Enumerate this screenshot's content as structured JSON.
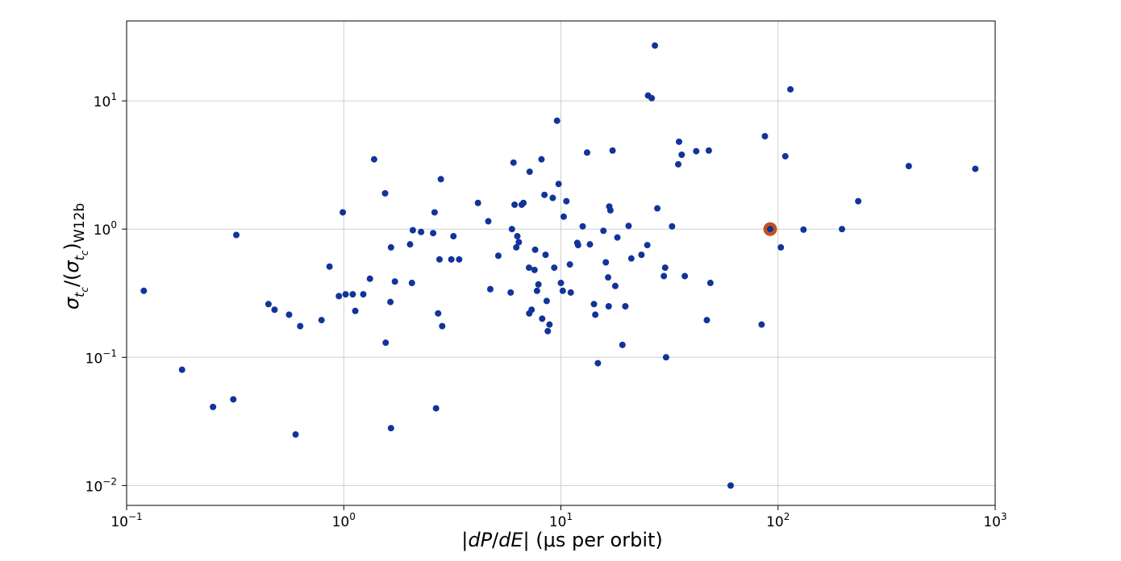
{
  "chart_data": {
    "type": "scatter",
    "xscale": "log",
    "yscale": "log",
    "xlim": [
      0.1,
      1000
    ],
    "ylim": [
      0.007,
      42
    ],
    "grid": true,
    "xlabel_parts": {
      "abs_open": "|",
      "dP": "dP",
      "slash": "/",
      "dE": "dE",
      "abs_close": "|",
      "units": " (μs per orbit)"
    },
    "ylabel_parts": {
      "sigma1": "σ",
      "sub1": "t",
      "subsub1": "c",
      "mid": "/(",
      "sigma2": "σ",
      "sub2": "t",
      "subsub2": "c",
      "close": ")",
      "subscript": "W12b"
    },
    "xticks": [
      {
        "value": 0.1,
        "base": "10",
        "exp": "−1"
      },
      {
        "value": 1,
        "base": "10",
        "exp": "0"
      },
      {
        "value": 10,
        "base": "10",
        "exp": "1"
      },
      {
        "value": 100,
        "base": "10",
        "exp": "2"
      },
      {
        "value": 1000,
        "base": "10",
        "exp": "3"
      }
    ],
    "yticks": [
      {
        "value": 0.01,
        "base": "10",
        "exp": "−2"
      },
      {
        "value": 0.1,
        "base": "10",
        "exp": "−1"
      },
      {
        "value": 1,
        "base": "10",
        "exp": "0"
      },
      {
        "value": 10,
        "base": "10",
        "exp": "1"
      }
    ],
    "point_color": "#12339a",
    "highlight_color": "#c2521e",
    "highlight": {
      "x": 92,
      "y": 1.0
    },
    "points": [
      {
        "x": 0.12,
        "y": 0.33
      },
      {
        "x": 0.18,
        "y": 0.08
      },
      {
        "x": 0.25,
        "y": 0.041
      },
      {
        "x": 0.31,
        "y": 0.047
      },
      {
        "x": 0.32,
        "y": 0.9
      },
      {
        "x": 0.45,
        "y": 0.26
      },
      {
        "x": 0.48,
        "y": 0.235
      },
      {
        "x": 0.56,
        "y": 0.215
      },
      {
        "x": 0.6,
        "y": 0.025
      },
      {
        "x": 0.63,
        "y": 0.175
      },
      {
        "x": 0.79,
        "y": 0.195
      },
      {
        "x": 0.86,
        "y": 0.51
      },
      {
        "x": 0.95,
        "y": 0.3
      },
      {
        "x": 0.99,
        "y": 1.35
      },
      {
        "x": 1.02,
        "y": 0.31
      },
      {
        "x": 1.1,
        "y": 0.31
      },
      {
        "x": 1.13,
        "y": 0.23
      },
      {
        "x": 1.23,
        "y": 0.31
      },
      {
        "x": 1.32,
        "y": 0.41
      },
      {
        "x": 1.38,
        "y": 3.5
      },
      {
        "x": 1.55,
        "y": 1.9
      },
      {
        "x": 1.56,
        "y": 0.13
      },
      {
        "x": 1.65,
        "y": 0.72
      },
      {
        "x": 1.65,
        "y": 0.028
      },
      {
        "x": 1.64,
        "y": 0.27
      },
      {
        "x": 1.72,
        "y": 0.39
      },
      {
        "x": 2.02,
        "y": 0.76
      },
      {
        "x": 2.06,
        "y": 0.38
      },
      {
        "x": 2.08,
        "y": 0.98
      },
      {
        "x": 2.27,
        "y": 0.95
      },
      {
        "x": 2.58,
        "y": 0.93
      },
      {
        "x": 2.62,
        "y": 1.35
      },
      {
        "x": 2.66,
        "y": 0.04
      },
      {
        "x": 2.72,
        "y": 0.22
      },
      {
        "x": 2.76,
        "y": 0.58
      },
      {
        "x": 2.8,
        "y": 2.45
      },
      {
        "x": 2.84,
        "y": 0.175
      },
      {
        "x": 3.2,
        "y": 0.88
      },
      {
        "x": 3.13,
        "y": 0.58
      },
      {
        "x": 3.4,
        "y": 0.58
      },
      {
        "x": 4.15,
        "y": 1.6
      },
      {
        "x": 4.63,
        "y": 1.15
      },
      {
        "x": 4.73,
        "y": 0.34
      },
      {
        "x": 5.15,
        "y": 0.62
      },
      {
        "x": 5.87,
        "y": 0.32
      },
      {
        "x": 5.95,
        "y": 1.0
      },
      {
        "x": 6.05,
        "y": 3.3
      },
      {
        "x": 6.12,
        "y": 1.55
      },
      {
        "x": 6.23,
        "y": 0.72
      },
      {
        "x": 6.3,
        "y": 0.88
      },
      {
        "x": 6.4,
        "y": 0.79
      },
      {
        "x": 6.6,
        "y": 1.55
      },
      {
        "x": 6.72,
        "y": 1.6
      },
      {
        "x": 7.13,
        "y": 0.5
      },
      {
        "x": 7.18,
        "y": 2.8
      },
      {
        "x": 7.15,
        "y": 0.22
      },
      {
        "x": 7.33,
        "y": 0.235
      },
      {
        "x": 7.56,
        "y": 0.48
      },
      {
        "x": 7.61,
        "y": 0.69
      },
      {
        "x": 7.76,
        "y": 0.33
      },
      {
        "x": 7.88,
        "y": 0.37
      },
      {
        "x": 8.14,
        "y": 3.5
      },
      {
        "x": 8.2,
        "y": 0.2
      },
      {
        "x": 8.4,
        "y": 1.85
      },
      {
        "x": 8.5,
        "y": 0.63
      },
      {
        "x": 8.6,
        "y": 0.275
      },
      {
        "x": 8.7,
        "y": 0.16
      },
      {
        "x": 8.86,
        "y": 0.18
      },
      {
        "x": 9.17,
        "y": 1.75
      },
      {
        "x": 9.32,
        "y": 0.5
      },
      {
        "x": 9.6,
        "y": 7.0
      },
      {
        "x": 9.76,
        "y": 2.25
      },
      {
        "x": 10.0,
        "y": 0.38
      },
      {
        "x": 10.2,
        "y": 0.33
      },
      {
        "x": 10.3,
        "y": 1.25
      },
      {
        "x": 10.6,
        "y": 1.65
      },
      {
        "x": 11.0,
        "y": 0.53
      },
      {
        "x": 11.1,
        "y": 0.32
      },
      {
        "x": 11.9,
        "y": 0.78
      },
      {
        "x": 12.0,
        "y": 0.75
      },
      {
        "x": 12.6,
        "y": 1.05
      },
      {
        "x": 13.2,
        "y": 3.95
      },
      {
        "x": 13.6,
        "y": 0.76
      },
      {
        "x": 14.2,
        "y": 0.26
      },
      {
        "x": 14.4,
        "y": 0.215
      },
      {
        "x": 14.8,
        "y": 0.09
      },
      {
        "x": 15.7,
        "y": 0.97
      },
      {
        "x": 16.1,
        "y": 0.55
      },
      {
        "x": 16.5,
        "y": 0.42
      },
      {
        "x": 16.6,
        "y": 0.25
      },
      {
        "x": 16.7,
        "y": 1.5
      },
      {
        "x": 16.9,
        "y": 1.4
      },
      {
        "x": 17.3,
        "y": 4.1
      },
      {
        "x": 17.8,
        "y": 0.36
      },
      {
        "x": 18.2,
        "y": 0.86
      },
      {
        "x": 19.2,
        "y": 0.125
      },
      {
        "x": 19.8,
        "y": 0.25
      },
      {
        "x": 20.5,
        "y": 1.06
      },
      {
        "x": 21.1,
        "y": 0.59
      },
      {
        "x": 23.5,
        "y": 0.63
      },
      {
        "x": 25.0,
        "y": 0.75
      },
      {
        "x": 25.2,
        "y": 11.0
      },
      {
        "x": 26.2,
        "y": 10.5
      },
      {
        "x": 27.1,
        "y": 27.0
      },
      {
        "x": 27.8,
        "y": 1.45
      },
      {
        "x": 29.8,
        "y": 0.43
      },
      {
        "x": 30.2,
        "y": 0.5
      },
      {
        "x": 30.5,
        "y": 0.1
      },
      {
        "x": 32.5,
        "y": 1.05
      },
      {
        "x": 34.7,
        "y": 3.2
      },
      {
        "x": 35.0,
        "y": 4.8
      },
      {
        "x": 36.0,
        "y": 3.8
      },
      {
        "x": 37.2,
        "y": 0.43
      },
      {
        "x": 42.0,
        "y": 4.05
      },
      {
        "x": 47.0,
        "y": 0.195
      },
      {
        "x": 48.0,
        "y": 4.1
      },
      {
        "x": 48.8,
        "y": 0.38
      },
      {
        "x": 60.5,
        "y": 0.01
      },
      {
        "x": 84.0,
        "y": 0.18
      },
      {
        "x": 87.0,
        "y": 5.3
      },
      {
        "x": 92.0,
        "y": 1.0
      },
      {
        "x": 103.0,
        "y": 0.72
      },
      {
        "x": 108.0,
        "y": 3.7
      },
      {
        "x": 114.0,
        "y": 12.3
      },
      {
        "x": 131.0,
        "y": 0.99
      },
      {
        "x": 197.0,
        "y": 1.0
      },
      {
        "x": 234.0,
        "y": 1.65
      },
      {
        "x": 400.0,
        "y": 3.1
      },
      {
        "x": 810.0,
        "y": 2.95
      }
    ]
  }
}
